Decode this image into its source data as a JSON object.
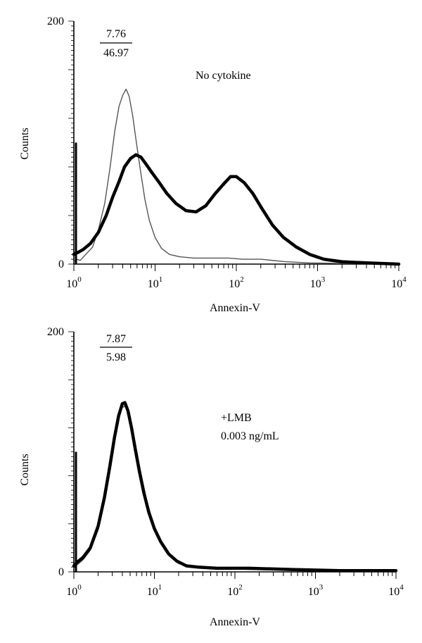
{
  "chart_data": [
    {
      "type": "line",
      "title": "",
      "xlabel": "Annexin-V",
      "ylabel": "Counts",
      "xscale": "log",
      "xlim": [
        1,
        10000
      ],
      "ylim": [
        0,
        200
      ],
      "x_ticks": [
        {
          "base": "10",
          "exp": "0"
        },
        {
          "base": "10",
          "exp": "1"
        },
        {
          "base": "10",
          "exp": "2"
        },
        {
          "base": "10",
          "exp": "3"
        },
        {
          "base": "10",
          "exp": "4"
        }
      ],
      "y_ticks": [
        "0",
        "200"
      ],
      "grid": false,
      "annotations": {
        "fraction_numerator": "7.76",
        "fraction_denominator": "46.97",
        "label_line1": "No cytokine",
        "label_line2": ""
      },
      "series": [
        {
          "style": "thin",
          "color": "#555555",
          "points": [
            [
              1.0,
              2
            ],
            [
              1.08,
              4
            ],
            [
              1.2,
              3
            ],
            [
              1.4,
              8
            ],
            [
              1.7,
              14
            ],
            [
              2.0,
              28
            ],
            [
              2.4,
              50
            ],
            [
              2.8,
              80
            ],
            [
              3.2,
              110
            ],
            [
              3.6,
              130
            ],
            [
              4.0,
              139
            ],
            [
              4.4,
              144
            ],
            [
              4.8,
              138
            ],
            [
              5.3,
              122
            ],
            [
              5.8,
              103
            ],
            [
              6.5,
              80
            ],
            [
              7.5,
              53
            ],
            [
              8.5,
              36
            ],
            [
              10,
              22
            ],
            [
              12,
              13
            ],
            [
              15,
              8
            ],
            [
              20,
              6
            ],
            [
              30,
              5
            ],
            [
              50,
              5
            ],
            [
              80,
              5
            ],
            [
              120,
              4
            ],
            [
              200,
              4
            ],
            [
              400,
              2
            ],
            [
              800,
              1
            ],
            [
              2000,
              0.5
            ],
            [
              10000,
              0
            ]
          ]
        },
        {
          "style": "thick",
          "color": "#000000",
          "points": [
            [
              1.0,
              8
            ],
            [
              1.15,
              10
            ],
            [
              1.3,
              12
            ],
            [
              1.6,
              17
            ],
            [
              2.0,
              26
            ],
            [
              2.5,
              40
            ],
            [
              3.0,
              55
            ],
            [
              3.6,
              68
            ],
            [
              4.2,
              80
            ],
            [
              5.0,
              87
            ],
            [
              5.8,
              90
            ],
            [
              6.7,
              88
            ],
            [
              7.8,
              82
            ],
            [
              9.0,
              76
            ],
            [
              11,
              68
            ],
            [
              14,
              58
            ],
            [
              18,
              50
            ],
            [
              24,
              44
            ],
            [
              32,
              43
            ],
            [
              42,
              48
            ],
            [
              55,
              58
            ],
            [
              70,
              66
            ],
            [
              85,
              72
            ],
            [
              100,
              72
            ],
            [
              125,
              67
            ],
            [
              160,
              58
            ],
            [
              210,
              45
            ],
            [
              280,
              32
            ],
            [
              380,
              22
            ],
            [
              550,
              14
            ],
            [
              800,
              8
            ],
            [
              1200,
              4
            ],
            [
              2000,
              2
            ],
            [
              4000,
              1
            ],
            [
              10000,
              0
            ]
          ]
        }
      ]
    },
    {
      "type": "line",
      "title": "",
      "xlabel": "Annexin-V",
      "ylabel": "Counts",
      "xscale": "log",
      "xlim": [
        1,
        10000
      ],
      "ylim": [
        0,
        200
      ],
      "x_ticks": [
        {
          "base": "10",
          "exp": "0"
        },
        {
          "base": "10",
          "exp": "1"
        },
        {
          "base": "10",
          "exp": "2"
        },
        {
          "base": "10",
          "exp": "3"
        },
        {
          "base": "10",
          "exp": "4"
        }
      ],
      "y_ticks": [
        "0",
        "200"
      ],
      "grid": false,
      "annotations": {
        "fraction_numerator": "7.87",
        "fraction_denominator": "5.98",
        "label_line1": "+LMB",
        "label_line2": "0.003 ng/mL"
      },
      "series": [
        {
          "style": "thin",
          "color": "#555555",
          "points": [
            [
              1.0,
              3
            ],
            [
              1.1,
              6
            ],
            [
              1.3,
              10
            ],
            [
              1.6,
              18
            ],
            [
              2.0,
              35
            ],
            [
              2.4,
              58
            ],
            [
              2.8,
              85
            ],
            [
              3.2,
              110
            ],
            [
              3.6,
              128
            ],
            [
              4.0,
              137
            ],
            [
              4.4,
              138
            ],
            [
              4.9,
              130
            ],
            [
              5.5,
              115
            ],
            [
              6.2,
              96
            ],
            [
              7.0,
              78
            ],
            [
              8.0,
              60
            ],
            [
              9.5,
              42
            ],
            [
              11,
              30
            ],
            [
              13,
              20
            ],
            [
              16,
              12
            ],
            [
              20,
              7
            ],
            [
              28,
              4
            ],
            [
              40,
              3
            ],
            [
              70,
              3
            ],
            [
              150,
              2
            ],
            [
              400,
              2
            ],
            [
              1500,
              1
            ],
            [
              10000,
              0
            ]
          ]
        },
        {
          "style": "thick",
          "color": "#000000",
          "points": [
            [
              1.0,
              5
            ],
            [
              1.1,
              8
            ],
            [
              1.3,
              12
            ],
            [
              1.6,
              20
            ],
            [
              2.0,
              38
            ],
            [
              2.4,
              62
            ],
            [
              2.8,
              88
            ],
            [
              3.2,
              112
            ],
            [
              3.6,
              130
            ],
            [
              4.0,
              140
            ],
            [
              4.3,
              141
            ],
            [
              4.7,
              134
            ],
            [
              5.2,
              120
            ],
            [
              5.8,
              102
            ],
            [
              6.5,
              84
            ],
            [
              7.4,
              66
            ],
            [
              8.5,
              50
            ],
            [
              10,
              36
            ],
            [
              12,
              25
            ],
            [
              15,
              15
            ],
            [
              19,
              9
            ],
            [
              25,
              5
            ],
            [
              35,
              4
            ],
            [
              60,
              3
            ],
            [
              150,
              3
            ],
            [
              500,
              2
            ],
            [
              2000,
              1
            ],
            [
              10000,
              1
            ]
          ]
        }
      ]
    }
  ]
}
